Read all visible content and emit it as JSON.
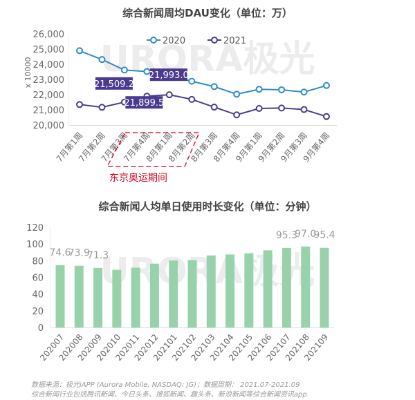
{
  "chart_data": [
    {
      "type": "line",
      "title": "综合新闻周均DAU变化（单位：万）",
      "ylabel": "x 10000",
      "ylim": [
        20000,
        26000
      ],
      "yticks": [
        "20,000",
        "21,000",
        "22,000",
        "23,000",
        "24,000",
        "25,000",
        "26,000"
      ],
      "categories": [
        "7月第1周",
        "7月第2周",
        "7月第3周",
        "7月第4周",
        "8月第1周",
        "8月第2周",
        "8月第3周",
        "8月第4周",
        "9月第1周",
        "9月第2周",
        "9月第3周",
        "9月第4周"
      ],
      "series": [
        {
          "name": "2020",
          "color": "#2E8BC9",
          "values": [
            24890,
            24310,
            23620,
            23520,
            23250,
            22880,
            22530,
            22030,
            22350,
            22320,
            22170,
            22600
          ]
        },
        {
          "name": "2021",
          "color": "#4B3A8F",
          "values": [
            21350,
            21170,
            21509.2,
            21899.5,
            21993.0,
            21690,
            21180,
            20670,
            21090,
            21120,
            21020,
            20560
          ]
        }
      ],
      "data_labels": [
        {
          "index": 2,
          "series": "2021",
          "text": "21,509.2"
        },
        {
          "index": 3,
          "series": "2021",
          "text": "21,899.5"
        },
        {
          "index": 4,
          "series": "2021",
          "text": "21,993.0"
        }
      ],
      "annotation": {
        "text": "东京奥运期间",
        "color": "#D0021B",
        "range": [
          "7月第3周",
          "8月第1周"
        ]
      },
      "legend": "top",
      "grid": false
    },
    {
      "type": "bar",
      "title": "综合新闻人均单日使用时长变化（单位：分钟）",
      "ylim": [
        0,
        120
      ],
      "yticks": [
        "0",
        "20",
        "40",
        "60",
        "80",
        "100",
        "120"
      ],
      "categories": [
        "202007",
        "202008",
        "202009",
        "202010",
        "202011",
        "202012",
        "202101",
        "202102",
        "202103",
        "202104",
        "202105",
        "202106",
        "202107",
        "202108",
        "202109"
      ],
      "values": [
        74.6,
        73.9,
        71.3,
        69.0,
        71.6,
        76.4,
        80.3,
        80.8,
        86.3,
        87.4,
        88.8,
        92.4,
        95.3,
        97.0,
        95.4
      ],
      "data_labels": [
        {
          "index": 0,
          "text": "74.6"
        },
        {
          "index": 1,
          "text": "73.9"
        },
        {
          "index": 2,
          "text": "71.3"
        },
        {
          "index": 12,
          "text": "95.3"
        },
        {
          "index": 13,
          "text": "97.0"
        },
        {
          "index": 14,
          "text": "95.4"
        }
      ],
      "color": "#97D2AB",
      "grid": false
    }
  ],
  "watermark": "URORA极光",
  "footer": {
    "line1": "数据来源：极光iAPP (Aurora Mobile, NASDAQ: JG)；数据周期：  2021.07-2021.09",
    "line2": "综合新闻行业包括腾讯新闻、今日头条、搜狐新闻、趣头条、新浪新闻等综合新闻资讯app"
  }
}
